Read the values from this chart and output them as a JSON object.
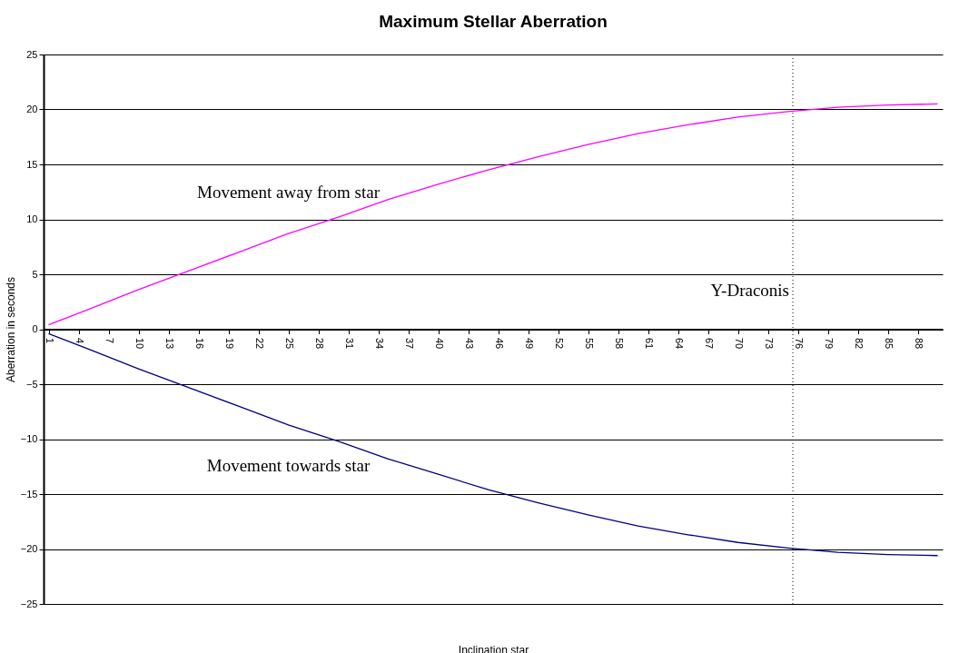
{
  "chart_data": {
    "type": "line",
    "title": "Maximum Stellar Aberration",
    "xlabel": "Inclination star",
    "ylabel": "Aberration in seconds",
    "series": [
      {
        "name": "Movement away from star",
        "color": "#ff00ff",
        "x": [
          1,
          5,
          10,
          15,
          20,
          25,
          30,
          35,
          40,
          45,
          50,
          55,
          60,
          65,
          70,
          75,
          80,
          85,
          90
        ],
        "values": [
          0.4,
          1.8,
          3.6,
          5.3,
          7.0,
          8.7,
          10.2,
          11.8,
          13.2,
          14.5,
          15.7,
          16.8,
          17.8,
          18.6,
          19.3,
          19.8,
          20.2,
          20.4,
          20.5
        ]
      },
      {
        "name": "Movement towards star",
        "color": "#000080",
        "x": [
          1,
          5,
          10,
          15,
          20,
          25,
          30,
          35,
          40,
          45,
          50,
          55,
          60,
          65,
          70,
          75,
          80,
          85,
          90
        ],
        "values": [
          -0.4,
          -1.8,
          -3.6,
          -5.3,
          -7.0,
          -8.7,
          -10.2,
          -11.8,
          -13.2,
          -14.6,
          -15.8,
          -16.9,
          -17.9,
          -18.7,
          -19.4,
          -19.9,
          -20.3,
          -20.5,
          -20.6
        ]
      }
    ],
    "xlim": [
      0.5,
      90.5
    ],
    "xticks": [
      1,
      4,
      7,
      10,
      13,
      16,
      19,
      22,
      25,
      28,
      31,
      34,
      37,
      40,
      43,
      46,
      49,
      52,
      55,
      58,
      61,
      64,
      67,
      70,
      73,
      76,
      79,
      82,
      85,
      88
    ],
    "ylim": [
      -25,
      25
    ],
    "yticks": [
      -25,
      -20,
      -15,
      -10,
      -5,
      0,
      5,
      10,
      15,
      20,
      25
    ],
    "grid": "y",
    "legend": false,
    "marker": "none",
    "line_style": "solid",
    "ref_lines": [
      {
        "axis": "x",
        "value": 75.5,
        "label": "Y-Draconis",
        "line_style": "dotted",
        "color": "#000000"
      }
    ]
  }
}
